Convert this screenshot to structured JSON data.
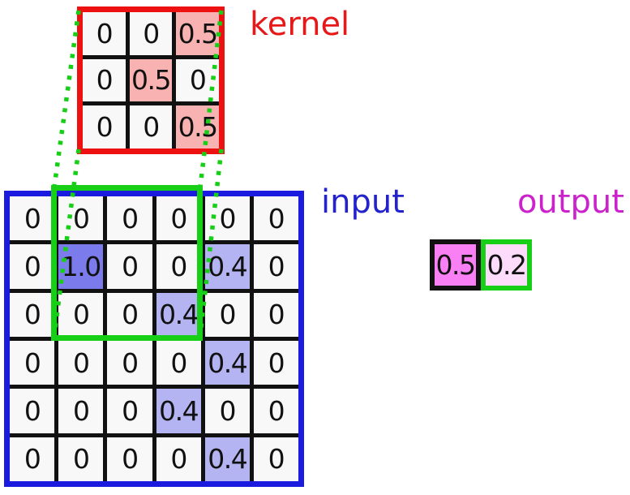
{
  "labels": {
    "kernel": "kernel",
    "input": "input",
    "output": "output"
  },
  "colors": {
    "kernel_border": "#ee1111",
    "kernel_label": "#e51919",
    "input_border": "#1b1be0",
    "input_label": "#2323cd",
    "output_label": "#cc22cc",
    "green_highlight": "#17cf17",
    "grid_line": "#111111",
    "cell_zero_fill": "#f8f8f8",
    "kernel_half_fill": "#f8b2b2",
    "input_one_fill": "#7b7bec",
    "input_point4_fill": "#b4b4f2",
    "output_first_fill": "#f980f4",
    "output_second_fill": "#fcdcfa",
    "number_text": "#111111"
  },
  "kernel": {
    "rows": [
      [
        "0",
        "0",
        "0.5"
      ],
      [
        "0",
        "0.5",
        "0"
      ],
      [
        "0",
        "0",
        "0.5"
      ]
    ]
  },
  "input": {
    "rows": [
      [
        "0",
        "0",
        "0",
        "0",
        "0",
        "0"
      ],
      [
        "0",
        "1.0",
        "0",
        "0",
        "0.4",
        "0"
      ],
      [
        "0",
        "0",
        "0",
        "0.4",
        "0",
        "0"
      ],
      [
        "0",
        "0",
        "0",
        "0",
        "0.4",
        "0"
      ],
      [
        "0",
        "0",
        "0",
        "0.4",
        "0",
        "0"
      ],
      [
        "0",
        "0",
        "0",
        "0",
        "0.4",
        "0"
      ]
    ]
  },
  "output": {
    "cells": [
      "0.5",
      "0.2"
    ]
  }
}
